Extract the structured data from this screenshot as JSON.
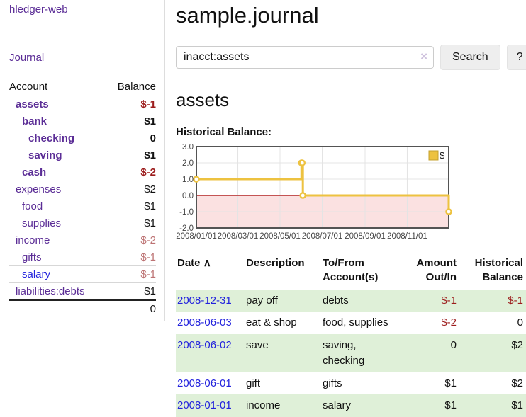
{
  "app": {
    "title": "hledger-web"
  },
  "sidebar": {
    "journal_link": "Journal",
    "table": {
      "headers": [
        "Account",
        "Balance"
      ],
      "rows": [
        {
          "name": "assets",
          "balance": "$-1",
          "indent": 1,
          "bold": true,
          "negative": "strong"
        },
        {
          "name": "bank",
          "balance": "$1",
          "indent": 2,
          "bold": true
        },
        {
          "name": "checking",
          "balance": "0",
          "indent": 3,
          "bold": true
        },
        {
          "name": "saving",
          "balance": "$1",
          "indent": 3,
          "bold": true
        },
        {
          "name": "cash",
          "balance": "$-2",
          "indent": 2,
          "bold": true,
          "negative": "strong"
        },
        {
          "name": "expenses",
          "balance": "$2",
          "indent": 1
        },
        {
          "name": "food",
          "balance": "$1",
          "indent": 2
        },
        {
          "name": "supplies",
          "balance": "$1",
          "indent": 2
        },
        {
          "name": "income",
          "balance": "$-2",
          "indent": 1,
          "negative": "soft"
        },
        {
          "name": "gifts",
          "balance": "$-1",
          "indent": 2,
          "negative": "soft"
        },
        {
          "name": "salary",
          "balance": "$-1",
          "indent": 2,
          "negative": "soft",
          "link_state": "unvisited"
        },
        {
          "name": "liabilities:debts",
          "balance": "$1",
          "indent": 1
        }
      ],
      "total": "0"
    }
  },
  "main": {
    "title": "sample.journal",
    "search": {
      "value": "inacct:assets",
      "clear_icon": "×",
      "button_label": "Search",
      "help_label": "?"
    },
    "account_heading": "assets",
    "chart_label": "Historical Balance:",
    "register": {
      "headers": [
        "Date",
        "Description",
        "To/From Account(s)",
        "Amount Out/In",
        "Historical Balance"
      ],
      "sort_icon": "∧",
      "rows": [
        {
          "date": "2008-12-31",
          "description": "pay off",
          "accounts": "debts",
          "amount": "$-1",
          "balance": "$-1",
          "amount_neg": true,
          "balance_neg": true
        },
        {
          "date": "2008-06-03",
          "description": "eat & shop",
          "accounts": "food, supplies",
          "amount": "$-2",
          "balance": "0",
          "amount_neg": true
        },
        {
          "date": "2008-06-02",
          "description": "save",
          "accounts": "saving, checking",
          "amount": "0",
          "balance": "$2"
        },
        {
          "date": "2008-06-01",
          "description": "gift",
          "accounts": "gifts",
          "amount": "$1",
          "balance": "$2"
        },
        {
          "date": "2008-01-01",
          "description": "income",
          "accounts": "salary",
          "amount": "$1",
          "balance": "$1"
        }
      ]
    }
  },
  "chart_data": {
    "type": "line",
    "step": true,
    "title": "Historical Balance:",
    "series": [
      {
        "name": "$",
        "color": "#edc240",
        "points": [
          {
            "date": "2008-01-01",
            "day": 0,
            "value": 1
          },
          {
            "date": "2008-06-01",
            "day": 152,
            "value": 2
          },
          {
            "date": "2008-06-02",
            "day": 153,
            "value": 2
          },
          {
            "date": "2008-06-03",
            "day": 154,
            "value": 0
          },
          {
            "date": "2008-12-31",
            "day": 365,
            "value": -1
          }
        ]
      }
    ],
    "x_ticks": [
      {
        "label": "2008/01/01",
        "day": 0
      },
      {
        "label": "2008/03/01",
        "day": 60
      },
      {
        "label": "2008/05/01",
        "day": 121
      },
      {
        "label": "2008/07/01",
        "day": 182
      },
      {
        "label": "2008/09/01",
        "day": 244
      },
      {
        "label": "2008/11/01",
        "day": 305
      }
    ],
    "y_ticks": [
      3.0,
      2.0,
      1.0,
      0.0,
      -1.0,
      -2.0
    ],
    "ylim": [
      -2,
      3
    ],
    "xlim_days": [
      0,
      365
    ],
    "grid": true,
    "legend_position": "top-right",
    "colors": {
      "grid_line": "#e4e4e4",
      "plot_border": "#545454",
      "zero_line": "#a40000",
      "negative_band": "#fbe1e1",
      "tick_text": "#454545",
      "marker_fill": "#ffffff"
    }
  }
}
